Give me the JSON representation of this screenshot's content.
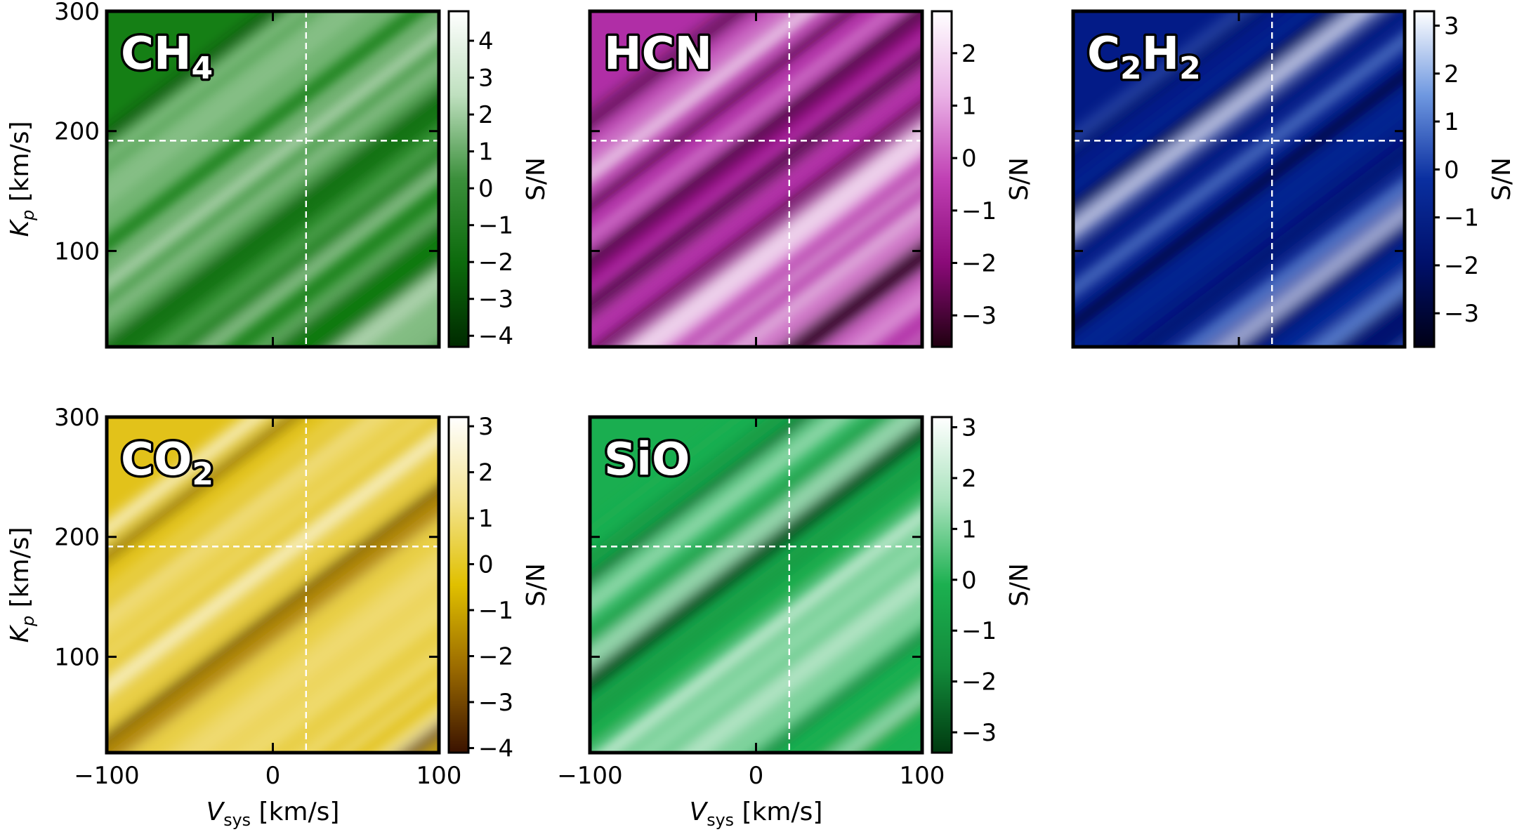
{
  "chart_data": [
    {
      "type": "heatmap",
      "species_label": {
        "main": "CH",
        "sub": "4"
      },
      "colormap": [
        "#002a00",
        "#0c6a0c",
        "#3b8f3b",
        "#bfe0bf",
        "#ffffff"
      ],
      "background_color": "#157f15",
      "colorbar": {
        "label": "S/N",
        "range": [
          -4.3,
          4.8
        ],
        "ticks": [
          -4,
          -3,
          -2,
          -1,
          0,
          1,
          2,
          3,
          4
        ],
        "tick_labels": [
          "−4",
          "−3",
          "−2",
          "−1",
          "0",
          "1",
          "2",
          "3",
          "4"
        ]
      },
      "x_axis": {
        "range": [
          -100,
          100
        ],
        "ticks": [
          -100,
          0,
          100
        ],
        "tick_labels": [
          "−100",
          "0",
          "100"
        ],
        "label": "",
        "show_ticklabels": false
      },
      "y_axis": {
        "range": [
          20,
          300
        ],
        "ticks": [
          100,
          200,
          300
        ],
        "tick_labels": [
          "100",
          "200",
          "300"
        ],
        "label": "Kp [km/s]",
        "show_ticklabels": true
      },
      "marker": {
        "vsys": 20,
        "kp": 192
      },
      "max_sn": 4.8
    },
    {
      "type": "heatmap",
      "species_label": {
        "main": "HCN",
        "sub": ""
      },
      "colormap": [
        "#200010",
        "#8a0a78",
        "#c040b4",
        "#eab2e6",
        "#ffffff"
      ],
      "background_color": "#b02ea6",
      "colorbar": {
        "label": "S/N",
        "range": [
          -3.6,
          2.8
        ],
        "ticks": [
          -3,
          -2,
          -1,
          0,
          1,
          2
        ],
        "tick_labels": [
          "−3",
          "−2",
          "−1",
          "0",
          "1",
          "2"
        ]
      },
      "x_axis": {
        "range": [
          -100,
          100
        ],
        "ticks": [
          -100,
          0,
          100
        ],
        "tick_labels": [
          "−100",
          "0",
          "100"
        ],
        "label": "",
        "show_ticklabels": false
      },
      "y_axis": {
        "range": [
          20,
          300
        ],
        "ticks": [
          100,
          200,
          300
        ],
        "tick_labels": [
          "100",
          "200",
          "300"
        ],
        "label": "",
        "show_ticklabels": false
      },
      "marker": {
        "vsys": 20,
        "kp": 192
      },
      "max_sn": 2.8
    },
    {
      "type": "heatmap",
      "species_label": {
        "main": "C",
        "sub": "2",
        "main2": "H",
        "sub2": "2"
      },
      "colormap": [
        "#000016",
        "#00106a",
        "#0a2fa0",
        "#6f98e0",
        "#ffffff"
      ],
      "background_color": "#031b87",
      "colorbar": {
        "label": "S/N",
        "range": [
          -3.7,
          3.3
        ],
        "ticks": [
          -3,
          -2,
          -1,
          0,
          1,
          2,
          3
        ],
        "tick_labels": [
          "−3",
          "−2",
          "−1",
          "0",
          "1",
          "2",
          "3"
        ]
      },
      "x_axis": {
        "range": [
          -100,
          100
        ],
        "ticks": [
          -100,
          0,
          100
        ],
        "tick_labels": [
          "−100",
          "0",
          "100"
        ],
        "label": "",
        "show_ticklabels": false
      },
      "y_axis": {
        "range": [
          20,
          300
        ],
        "ticks": [
          100,
          200,
          300
        ],
        "tick_labels": [
          "100",
          "200",
          "300"
        ],
        "label": "",
        "show_ticklabels": false
      },
      "marker": {
        "vsys": 20,
        "kp": 192
      },
      "max_sn": 3.3
    },
    {
      "type": "heatmap",
      "species_label": {
        "main": "CO",
        "sub": "2"
      },
      "colormap": [
        "#3a1200",
        "#9a6a00",
        "#e0c000",
        "#f4e490",
        "#ffffff"
      ],
      "background_color": "#e2c21a",
      "colorbar": {
        "label": "S/N",
        "range": [
          -4.1,
          3.2
        ],
        "ticks": [
          -4,
          -3,
          -2,
          -1,
          0,
          1,
          2,
          3
        ],
        "tick_labels": [
          "−4",
          "−3",
          "−2",
          "−1",
          "0",
          "1",
          "2",
          "3"
        ]
      },
      "x_axis": {
        "range": [
          -100,
          100
        ],
        "ticks": [
          -100,
          0,
          100
        ],
        "tick_labels": [
          "−100",
          "0",
          "100"
        ],
        "label": "Vsys [km/s]",
        "show_ticklabels": true
      },
      "y_axis": {
        "range": [
          20,
          300
        ],
        "ticks": [
          100,
          200,
          300
        ],
        "tick_labels": [
          "100",
          "200",
          "300"
        ],
        "label": "Kp [km/s]",
        "show_ticklabels": true
      },
      "marker": {
        "vsys": 20,
        "kp": 192
      },
      "max_sn": 3.2
    },
    {
      "type": "heatmap",
      "species_label": {
        "main": "SiO",
        "sub": ""
      },
      "colormap": [
        "#003a10",
        "#128a3a",
        "#1cb050",
        "#a8e2bc",
        "#ffffff"
      ],
      "background_color": "#1aae50",
      "colorbar": {
        "label": "S/N",
        "range": [
          -3.4,
          3.2
        ],
        "ticks": [
          -3,
          -2,
          -1,
          0,
          1,
          2,
          3
        ],
        "tick_labels": [
          "−3",
          "−2",
          "−1",
          "0",
          "1",
          "2",
          "3"
        ]
      },
      "x_axis": {
        "range": [
          -100,
          100
        ],
        "ticks": [
          -100,
          0,
          100
        ],
        "tick_labels": [
          "−100",
          "0",
          "100"
        ],
        "label": "Vsys [km/s]",
        "show_ticklabels": true
      },
      "y_axis": {
        "range": [
          20,
          300
        ],
        "ticks": [
          100,
          200,
          300
        ],
        "tick_labels": [
          "100",
          "200",
          "300"
        ],
        "label": "",
        "show_ticklabels": false
      },
      "marker": {
        "vsys": 20,
        "kp": 192
      },
      "max_sn": 3.2
    }
  ],
  "axis_label_parts": {
    "kp_main": "K",
    "kp_sub": "p",
    "kp_unit": " [km/s]",
    "vsys_main": "V",
    "vsys_sub": "sys",
    "vsys_unit": " [km/s]"
  }
}
